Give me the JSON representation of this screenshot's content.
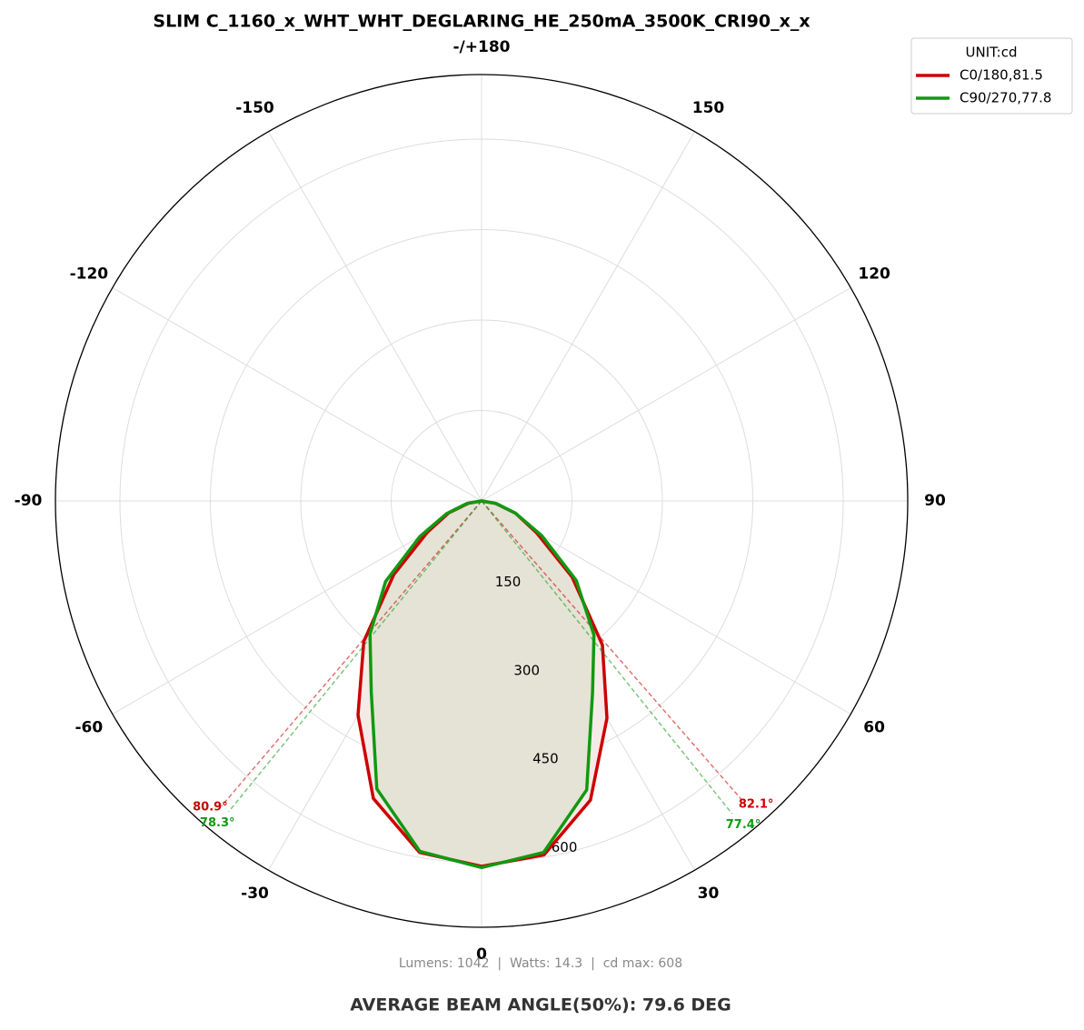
{
  "chart_data": {
    "type": "polar",
    "title": "SLIM C_1160_x_WHT_WHT_DEGLARING_HE_250mA_3500K_CRI90_x_x",
    "x": [
      -90,
      -80,
      -70,
      -60,
      -50,
      -40,
      -30,
      -20,
      -10,
      0,
      10,
      20,
      30,
      40,
      50,
      60,
      70,
      80,
      90
    ],
    "series": [
      {
        "name": "C0/180,81.5",
        "color": "#cc0000",
        "fill": "#f4ebe7",
        "values": [
          0,
          22,
          58,
          104,
          190,
          304,
          410,
          525,
          592,
          606,
          596,
          528,
          416,
          312,
          196,
          105,
          60,
          23,
          0
        ],
        "beam_left": {
          "value": 80.9,
          "label": "80.9°"
        },
        "beam_right": {
          "value": 82.1,
          "label": "82.1°"
        }
      },
      {
        "name": "C90/270,77.8",
        "color": "#119911",
        "fill": "#e5e3d6",
        "values": [
          0,
          25,
          62,
          118,
          208,
          288,
          366,
          508,
          590,
          608,
          592,
          510,
          368,
          290,
          205,
          115,
          60,
          25,
          0
        ],
        "beam_left": {
          "value": 78.3,
          "label": "78.3°"
        },
        "beam_right": {
          "value": 77.4,
          "label": "77.4°"
        }
      }
    ],
    "ylim": [
      0,
      707
    ],
    "yticks": [
      150,
      300,
      450,
      600
    ],
    "xticks": [
      0,
      30,
      60,
      90,
      120,
      150,
      {
        "value": 180,
        "label": "-/+180"
      },
      -150,
      -120,
      -90,
      -60,
      -30
    ],
    "grid": true,
    "legend_title": "UNIT:cd",
    "legend": "upper right",
    "footnote": "Lumens: 1042  |  Watts: 14.3  |  cd max: 608",
    "caption": "AVERAGE BEAM ANGLE(50%): 79.6 DEG"
  }
}
